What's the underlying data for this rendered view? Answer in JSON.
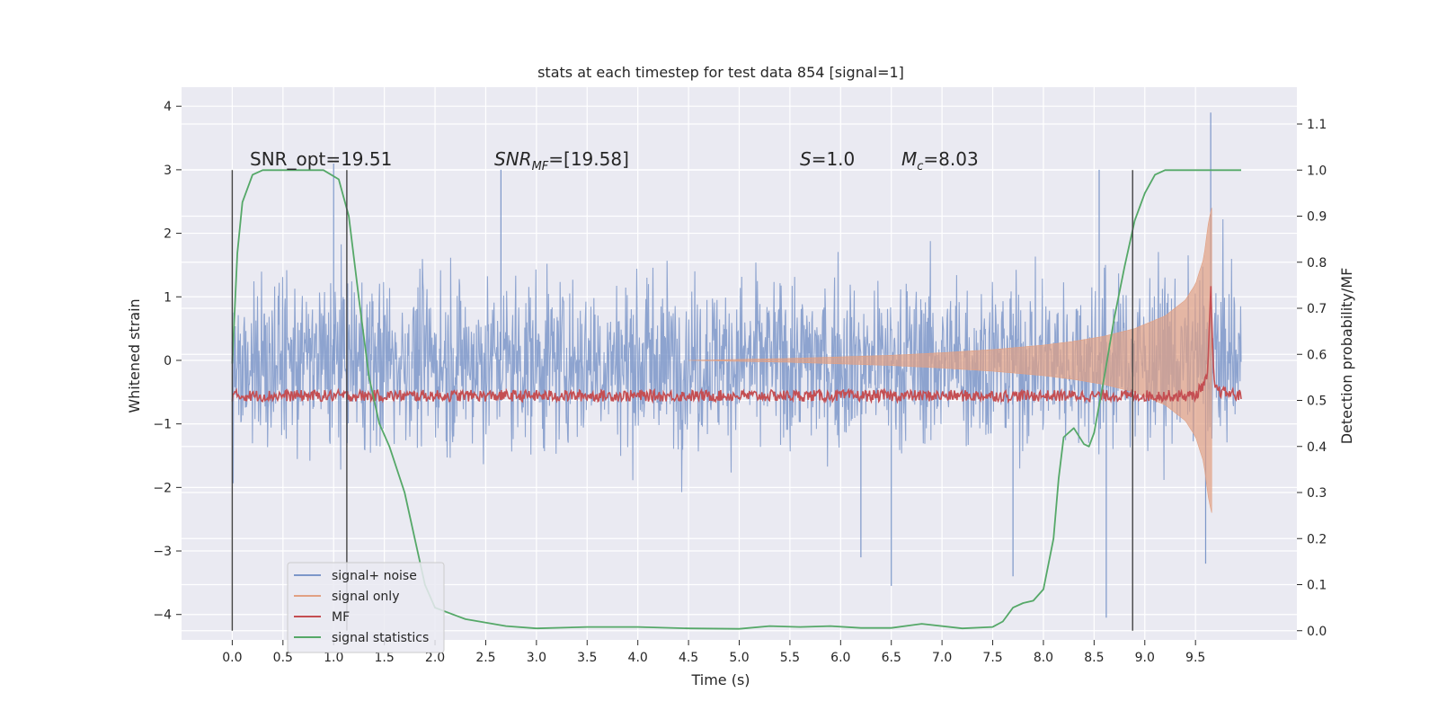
{
  "chart_data": {
    "type": "line",
    "title": "stats at each timestep for test data 854 [signal=1]",
    "xlabel": "Time (s)",
    "ylabel": "Whitened strain",
    "y2label": "Detection probability/MF",
    "xlim": [
      -0.5,
      10.5
    ],
    "ylim": [
      -4.4,
      4.3
    ],
    "y2lim": [
      -0.02,
      1.18
    ],
    "x_ticks": [
      "0.0",
      "0.5",
      "1.0",
      "1.5",
      "2.0",
      "2.5",
      "3.0",
      "3.5",
      "4.0",
      "4.5",
      "5.0",
      "5.5",
      "6.0",
      "6.5",
      "7.0",
      "7.5",
      "8.0",
      "8.5",
      "9.0",
      "9.5"
    ],
    "y_ticks": [
      "4",
      "3",
      "2",
      "1",
      "0",
      "−1",
      "−2",
      "−3",
      "−4"
    ],
    "y2_ticks": [
      "1.1",
      "1.0",
      "0.9",
      "0.8",
      "0.7",
      "0.6",
      "0.5",
      "0.4",
      "0.3",
      "0.2",
      "0.1",
      "0.0"
    ],
    "grid": true,
    "legend_position": "bottom-left",
    "annotations": {
      "snr_opt": "SNR_opt=19.51",
      "snr_mf_base": "SNR",
      "snr_mf_sub": "MF",
      "snr_mf_value": "=[19.58]",
      "s_base": "S",
      "s_value": "=1.0",
      "mc_base": "M",
      "mc_sub": "c",
      "mc_value": "=8.03"
    },
    "vertical_lines_x": [
      0.0,
      1.13,
      8.88
    ],
    "colors": {
      "signal_noise": "#7c97c9",
      "signal_only": "#e1a083",
      "mf": "#c44e52",
      "signal_statistics": "#55a868",
      "background": "#eaeaf2",
      "vline": "#444444"
    },
    "series": [
      {
        "name": "signal+ noise",
        "kind": "noise_band",
        "x_range": [
          0.0,
          9.95
        ],
        "typical_amplitude": 1.2,
        "extreme_spikes": [
          {
            "x": 1.0,
            "y": 3.1
          },
          {
            "x": 2.65,
            "y": 3.0
          },
          {
            "x": 6.5,
            "y": -3.55
          },
          {
            "x": 7.7,
            "y": -3.4
          },
          {
            "x": 8.62,
            "y": -4.05
          },
          {
            "x": 9.65,
            "y": 3.9
          },
          {
            "x": 9.6,
            "y": -3.2
          },
          {
            "x": 8.55,
            "y": 3.0
          },
          {
            "x": 6.2,
            "y": -3.1
          }
        ]
      },
      {
        "name": "signal only",
        "kind": "chirp_envelope",
        "x": [
          4.5,
          5.5,
          6.5,
          7.0,
          7.5,
          8.0,
          8.3,
          8.6,
          8.9,
          9.2,
          9.4,
          9.5,
          9.58,
          9.63,
          9.66
        ],
        "amplitude": [
          0.0,
          0.03,
          0.08,
          0.12,
          0.17,
          0.24,
          0.3,
          0.38,
          0.5,
          0.7,
          0.95,
          1.2,
          1.6,
          2.2,
          2.4
        ]
      },
      {
        "name": "MF",
        "kind": "line_y2",
        "x": [
          0.0,
          9.5,
          9.62,
          9.65,
          9.66,
          9.68,
          9.72,
          9.95
        ],
        "y": [
          0.51,
          0.51,
          0.55,
          0.75,
          0.67,
          0.54,
          0.52,
          0.51
        ]
      },
      {
        "name": "signal statistics",
        "kind": "line_y2",
        "x": [
          0.0,
          0.05,
          0.1,
          0.2,
          0.3,
          0.5,
          0.9,
          1.05,
          1.15,
          1.25,
          1.35,
          1.45,
          1.55,
          1.7,
          1.8,
          1.9,
          2.0,
          2.3,
          2.7,
          3.0,
          3.5,
          4.0,
          4.5,
          5.0,
          5.3,
          5.6,
          5.9,
          6.2,
          6.5,
          6.8,
          7.2,
          7.5,
          7.6,
          7.7,
          7.8,
          7.9,
          8.0,
          8.1,
          8.15,
          8.2,
          8.3,
          8.4,
          8.45,
          8.5,
          8.6,
          8.7,
          8.8,
          8.9,
          9.0,
          9.1,
          9.2,
          9.5,
          9.95
        ],
        "y": [
          0.58,
          0.82,
          0.93,
          0.99,
          1.0,
          1.0,
          1.0,
          0.98,
          0.9,
          0.72,
          0.55,
          0.45,
          0.4,
          0.3,
          0.2,
          0.1,
          0.05,
          0.025,
          0.01,
          0.005,
          0.008,
          0.008,
          0.005,
          0.004,
          0.01,
          0.008,
          0.01,
          0.006,
          0.006,
          0.015,
          0.005,
          0.008,
          0.02,
          0.05,
          0.06,
          0.065,
          0.09,
          0.2,
          0.33,
          0.42,
          0.44,
          0.405,
          0.4,
          0.43,
          0.55,
          0.68,
          0.79,
          0.89,
          0.95,
          0.99,
          1.0,
          1.0,
          1.0
        ]
      }
    ]
  }
}
